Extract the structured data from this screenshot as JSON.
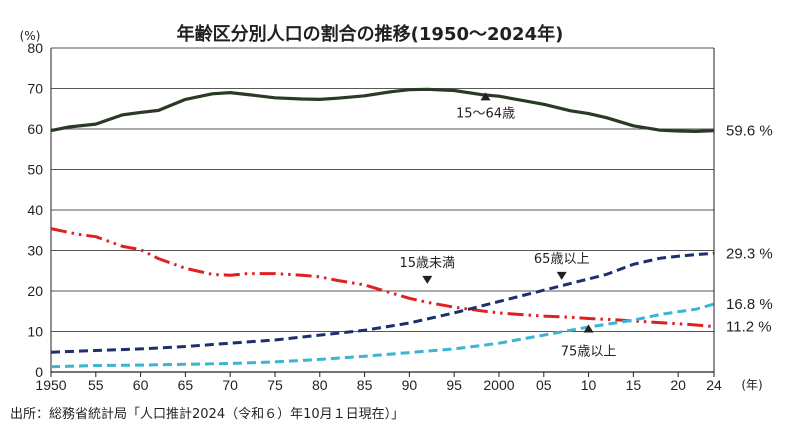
{
  "chart_data": {
    "type": "line",
    "title": "年齢区分別人口の割合の推移(1950〜2024年)",
    "y_unit": "(%)",
    "x_unit": "(年)",
    "ylim": [
      0,
      80
    ],
    "xlim": [
      1950,
      2024
    ],
    "grid": true,
    "x_ticks": [
      {
        "year": 1950,
        "label": "1950"
      },
      {
        "year": 1955,
        "label": "55"
      },
      {
        "year": 1960,
        "label": "60"
      },
      {
        "year": 1965,
        "label": "65"
      },
      {
        "year": 1970,
        "label": "70"
      },
      {
        "year": 1975,
        "label": "75"
      },
      {
        "year": 1980,
        "label": "80"
      },
      {
        "year": 1985,
        "label": "85"
      },
      {
        "year": 1990,
        "label": "90"
      },
      {
        "year": 1995,
        "label": "95"
      },
      {
        "year": 2000,
        "label": "2000"
      },
      {
        "year": 2005,
        "label": "05"
      },
      {
        "year": 2010,
        "label": "10"
      },
      {
        "year": 2015,
        "label": "15"
      },
      {
        "year": 2020,
        "label": "20"
      },
      {
        "year": 2024,
        "label": "24"
      }
    ],
    "y_ticks": [
      0,
      10,
      20,
      30,
      40,
      50,
      60,
      70,
      80
    ],
    "series": [
      {
        "name": "15〜64歳",
        "color": "#2b3a27",
        "style": "solid",
        "end_label": "59.6 %",
        "label_anchor": {
          "x": 1998.5,
          "y": 68.3
        },
        "points": [
          [
            1950,
            59.6
          ],
          [
            1952,
            60.5
          ],
          [
            1955,
            61.2
          ],
          [
            1958,
            63.5
          ],
          [
            1960,
            64.1
          ],
          [
            1962,
            64.6
          ],
          [
            1965,
            67.3
          ],
          [
            1968,
            68.7
          ],
          [
            1970,
            69.0
          ],
          [
            1972,
            68.5
          ],
          [
            1975,
            67.7
          ],
          [
            1978,
            67.4
          ],
          [
            1980,
            67.3
          ],
          [
            1982,
            67.6
          ],
          [
            1985,
            68.2
          ],
          [
            1988,
            69.2
          ],
          [
            1990,
            69.7
          ],
          [
            1992,
            69.8
          ],
          [
            1995,
            69.5
          ],
          [
            1998,
            68.5
          ],
          [
            2000,
            68.1
          ],
          [
            2003,
            66.9
          ],
          [
            2005,
            66.1
          ],
          [
            2008,
            64.5
          ],
          [
            2010,
            63.8
          ],
          [
            2012,
            62.8
          ],
          [
            2015,
            60.8
          ],
          [
            2018,
            59.7
          ],
          [
            2020,
            59.5
          ],
          [
            2022,
            59.4
          ],
          [
            2024,
            59.6
          ]
        ]
      },
      {
        "name": "15歳未満",
        "color": "#e02020",
        "style": "dash-dot-dot",
        "end_label": "11.2 %",
        "label_anchor": {
          "x": 1992,
          "y": 22.5
        },
        "points": [
          [
            1950,
            35.4
          ],
          [
            1953,
            34.0
          ],
          [
            1955,
            33.4
          ],
          [
            1958,
            31.0
          ],
          [
            1960,
            30.2
          ],
          [
            1962,
            28.0
          ],
          [
            1965,
            25.6
          ],
          [
            1968,
            24.1
          ],
          [
            1970,
            23.9
          ],
          [
            1972,
            24.3
          ],
          [
            1975,
            24.3
          ],
          [
            1978,
            23.9
          ],
          [
            1980,
            23.5
          ],
          [
            1982,
            22.6
          ],
          [
            1985,
            21.5
          ],
          [
            1988,
            19.5
          ],
          [
            1990,
            18.2
          ],
          [
            1992,
            17.2
          ],
          [
            1995,
            16.0
          ],
          [
            1998,
            15.1
          ],
          [
            2000,
            14.6
          ],
          [
            2003,
            14.1
          ],
          [
            2005,
            13.8
          ],
          [
            2008,
            13.5
          ],
          [
            2010,
            13.2
          ],
          [
            2013,
            12.9
          ],
          [
            2015,
            12.6
          ],
          [
            2018,
            12.2
          ],
          [
            2020,
            11.9
          ],
          [
            2022,
            11.6
          ],
          [
            2024,
            11.2
          ]
        ]
      },
      {
        "name": "65歳以上",
        "color": "#1f2e6e",
        "style": "dashed",
        "end_label": "29.3 %",
        "label_anchor": {
          "x": 2007,
          "y": 23.5
        },
        "points": [
          [
            1950,
            4.9
          ],
          [
            1955,
            5.3
          ],
          [
            1960,
            5.7
          ],
          [
            1965,
            6.3
          ],
          [
            1970,
            7.1
          ],
          [
            1975,
            7.9
          ],
          [
            1980,
            9.1
          ],
          [
            1985,
            10.3
          ],
          [
            1990,
            12.1
          ],
          [
            1995,
            14.6
          ],
          [
            2000,
            17.4
          ],
          [
            2005,
            20.2
          ],
          [
            2010,
            23.0
          ],
          [
            2012,
            24.1
          ],
          [
            2015,
            26.6
          ],
          [
            2018,
            28.1
          ],
          [
            2020,
            28.6
          ],
          [
            2022,
            29.0
          ],
          [
            2024,
            29.3
          ]
        ]
      },
      {
        "name": "75歳以上",
        "color": "#3ab5d4",
        "style": "dashed",
        "end_label": "16.8 %",
        "label_anchor": {
          "x": 2010,
          "y": 11.0
        },
        "points": [
          [
            1950,
            1.3
          ],
          [
            1955,
            1.6
          ],
          [
            1960,
            1.7
          ],
          [
            1965,
            1.9
          ],
          [
            1970,
            2.1
          ],
          [
            1975,
            2.5
          ],
          [
            1980,
            3.1
          ],
          [
            1985,
            3.9
          ],
          [
            1990,
            4.8
          ],
          [
            1995,
            5.7
          ],
          [
            2000,
            7.1
          ],
          [
            2005,
            9.1
          ],
          [
            2010,
            11.1
          ],
          [
            2015,
            12.8
          ],
          [
            2018,
            14.2
          ],
          [
            2020,
            14.9
          ],
          [
            2022,
            15.5
          ],
          [
            2024,
            16.8
          ]
        ]
      }
    ],
    "source": "出所：総務省統計局「人口推計2024（令和６）年10月１日現在）」"
  }
}
